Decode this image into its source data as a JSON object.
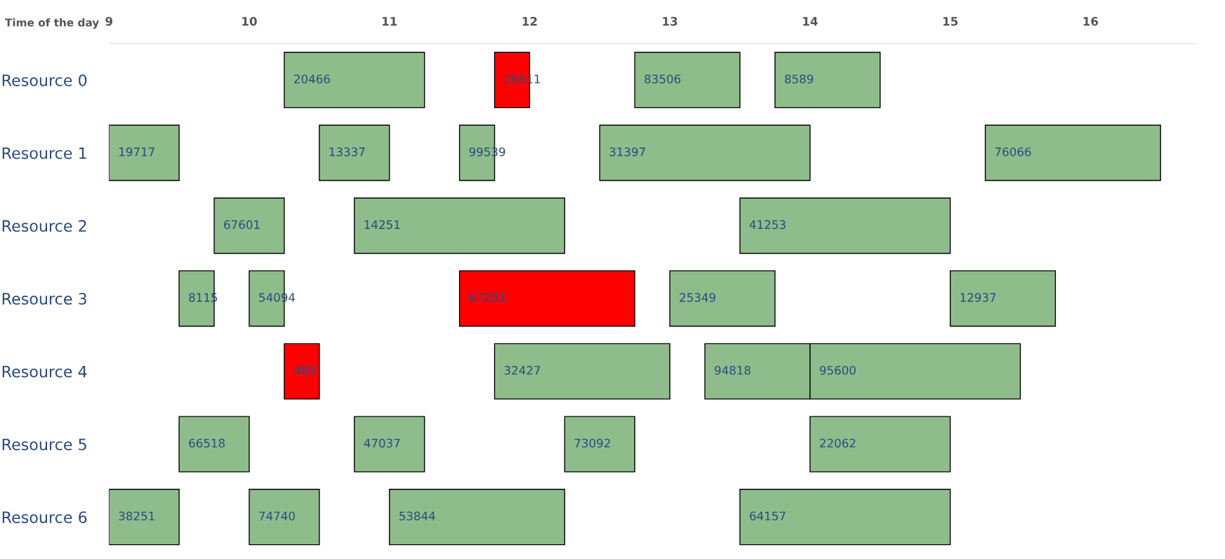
{
  "chart_data": {
    "type": "bar",
    "orientation": "horizontal",
    "xlabel": "Time of the day",
    "categories": [
      "Resource 0",
      "Resource 1",
      "Resource 2",
      "Resource 3",
      "Resource 4",
      "Resource 5",
      "Resource 6"
    ],
    "xlim": [
      9,
      16.75
    ],
    "xticks": [
      9,
      10,
      11,
      12,
      13,
      14,
      15,
      16
    ],
    "grid": false,
    "tick_labels": "xy",
    "series": [
      {
        "base": [
          10.25,
          9,
          9.75,
          9.5,
          10.25,
          9.5,
          9
        ],
        "values": [
          1,
          0.5,
          0.5,
          0.25,
          0.25,
          0.5,
          0.5
        ],
        "colors": [
          "#8fbc8b",
          "#8fbc8b",
          "#8fbc8b",
          "#8fbc8b",
          "#ff0000",
          "#8fbc8b",
          "#8fbc8b"
        ]
      },
      {
        "base": [
          11.75,
          10.5,
          10.75,
          10,
          11.75,
          10.75,
          10
        ],
        "values": [
          0.25,
          0.5,
          1.5,
          0.25,
          1.25,
          0.5,
          0.5
        ],
        "colors": [
          "#ff0000",
          "#8fbc8b",
          "#8fbc8b",
          "#8fbc8b",
          "#8fbc8b",
          "#8fbc8b",
          "#8fbc8b"
        ]
      },
      {
        "base": [
          12.75,
          11.5,
          13.5,
          11.5,
          13.25,
          12.25,
          11
        ],
        "values": [
          0.75,
          0.25,
          1.5,
          1.25,
          0.75,
          0.5,
          1.25
        ],
        "colors": [
          "#8fbc8b",
          "#8fbc8b",
          "#8fbc8b",
          "#ff0000",
          "#8fbc8b",
          "#8fbc8b",
          "#8fbc8b"
        ]
      },
      {
        "base": [
          13.75,
          12.5,
          null,
          13,
          14,
          14,
          13.5
        ],
        "values": [
          0.75,
          1.5,
          null,
          0.75,
          1.5,
          1,
          1.5
        ],
        "colors": [
          "#8fbc8b",
          "#8fbc8b",
          null,
          "#8fbc8b",
          "#8fbc8b",
          "#8fbc8b",
          "#8fbc8b"
        ]
      },
      {
        "base": [
          null,
          15.25,
          null,
          15,
          null,
          null,
          null
        ],
        "values": [
          null,
          1.25,
          null,
          0.75,
          null,
          null,
          null
        ],
        "colors": [
          null,
          "#8fbc8b",
          null,
          "#8fbc8b",
          null,
          null,
          null
        ]
      }
    ],
    "annotations": [
      "20466",
      "26511",
      "83506",
      "8589",
      "19717",
      "13337",
      "99539",
      "31397",
      "76066",
      "67601",
      "14251",
      "41253",
      "8115",
      "54094",
      "67201",
      "25349",
      "12937",
      "488",
      "32427",
      "94818",
      "95600",
      "66518",
      "47037",
      "73092",
      "22062",
      "38251",
      "74740",
      "53844",
      "64157"
    ]
  }
}
